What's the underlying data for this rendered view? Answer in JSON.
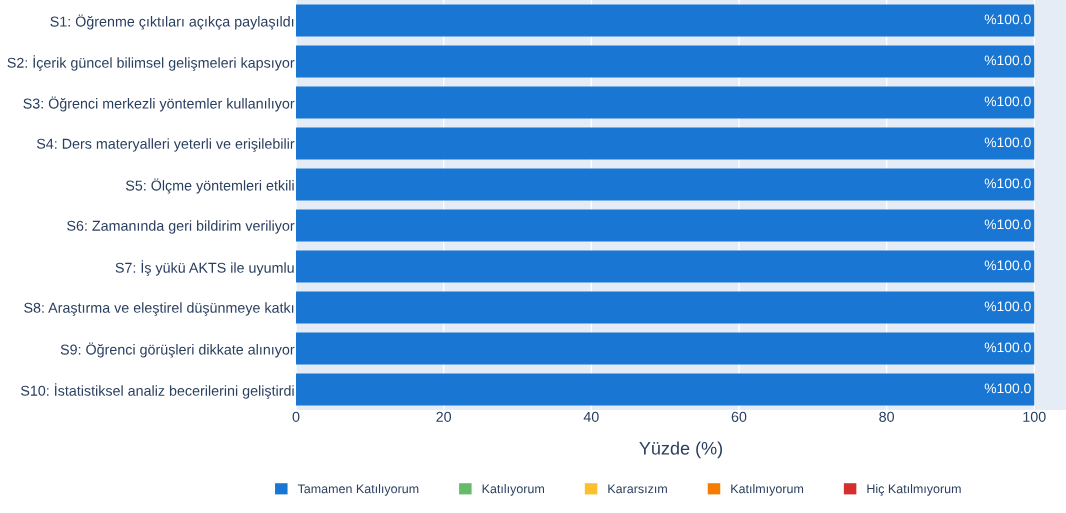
{
  "chart_data": {
    "type": "bar",
    "orientation": "horizontal",
    "xlabel": "Yüzde (%)",
    "categories": [
      "S1: Öğrenme çıktıları açıkça paylaşıldı",
      "S2: İçerik güncel bilimsel gelişmeleri kapsıyor",
      "S3: Öğrenci merkezli yöntemler kullanılıyor",
      "S4: Ders materyalleri yeterli ve erişilebilir",
      "S5: Ölçme yöntemleri etkili",
      "S6: Zamanında geri bildirim veriliyor",
      "S7: İş yükü AKTS ile uyumlu",
      "S8: Araştırma ve eleştirel düşünmeye katkı",
      "S9: Öğrenci görüşleri dikkate alınıyor",
      "S10: İstatistiksel analiz becerilerini geliştirdi"
    ],
    "series": [
      {
        "name": "Tamamen Katılıyorum",
        "color": "#1976d2",
        "values": [
          100,
          100,
          100,
          100,
          100,
          100,
          100,
          100,
          100,
          100
        ],
        "value_labels": [
          "%100.0",
          "%100.0",
          "%100.0",
          "%100.0",
          "%100.0",
          "%100.0",
          "%100.0",
          "%100.0",
          "%100.0",
          "%100.0"
        ]
      },
      {
        "name": "Katılıyorum",
        "color": "#66bb6a",
        "values": [
          0,
          0,
          0,
          0,
          0,
          0,
          0,
          0,
          0,
          0
        ]
      },
      {
        "name": "Kararsızım",
        "color": "#fbc02d",
        "values": [
          0,
          0,
          0,
          0,
          0,
          0,
          0,
          0,
          0,
          0
        ]
      },
      {
        "name": "Katılmıyorum",
        "color": "#f57c00",
        "values": [
          0,
          0,
          0,
          0,
          0,
          0,
          0,
          0,
          0,
          0
        ]
      },
      {
        "name": "Hiç Katılmıyorum",
        "color": "#d32f2f",
        "values": [
          0,
          0,
          0,
          0,
          0,
          0,
          0,
          0,
          0,
          0
        ]
      }
    ],
    "xlim": [
      0,
      104.3
    ],
    "xticks": [
      0,
      20,
      40,
      60,
      80,
      100
    ],
    "grid": "x",
    "legend": "bottom"
  }
}
